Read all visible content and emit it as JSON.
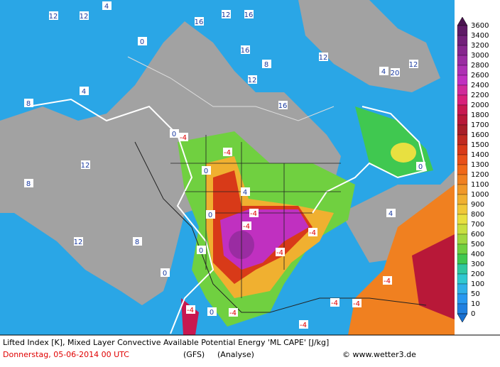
{
  "map": {
    "contour_labels": [
      "12",
      "4",
      "12",
      "0",
      "16",
      "12",
      "16",
      "16",
      "8",
      "12",
      "16",
      "12",
      "20",
      "12",
      "4",
      "8",
      "12",
      "0",
      "-4",
      "-4",
      "0",
      "4",
      "0",
      "-4",
      "-4",
      "-4",
      "-4",
      "0",
      "0",
      "-4",
      "0",
      "-4",
      "-4",
      "-4",
      "-4",
      "-4",
      "0",
      "4",
      "8",
      "12",
      "4",
      "8"
    ]
  },
  "legend": {
    "levels": [
      3600,
      3400,
      3200,
      3000,
      2800,
      2600,
      2400,
      2200,
      2000,
      1800,
      1700,
      1600,
      1500,
      1400,
      1300,
      1200,
      1100,
      1000,
      900,
      800,
      700,
      600,
      500,
      400,
      300,
      200,
      100,
      50,
      10,
      0
    ],
    "colors": [
      "#4a1450",
      "#5e1a66",
      "#72207a",
      "#86268e",
      "#9a2ca2",
      "#ae30b4",
      "#c030c0",
      "#d02a9a",
      "#d8207a",
      "#c81850",
      "#b81838",
      "#a81e28",
      "#c02a20",
      "#d83a18",
      "#e85018",
      "#f06818",
      "#f08020",
      "#f09828",
      "#f0b030",
      "#f0c838",
      "#e8e040",
      "#c8e040",
      "#a0d840",
      "#70d040",
      "#40c850",
      "#30c8a0",
      "#30c8d0",
      "#30b0e8",
      "#2898f0",
      "#2080e0",
      "#1870d0"
    ]
  },
  "footer": {
    "description": "Lifted Index [K], Mixed Layer Convective Available Potential Energy 'ML CAPE' [J/kg]",
    "date": "Donnerstag, 05-06-2014  00 UTC",
    "model": "(GFS)",
    "run": "(Analyse)",
    "copyright": "© www.wetter3.de"
  }
}
